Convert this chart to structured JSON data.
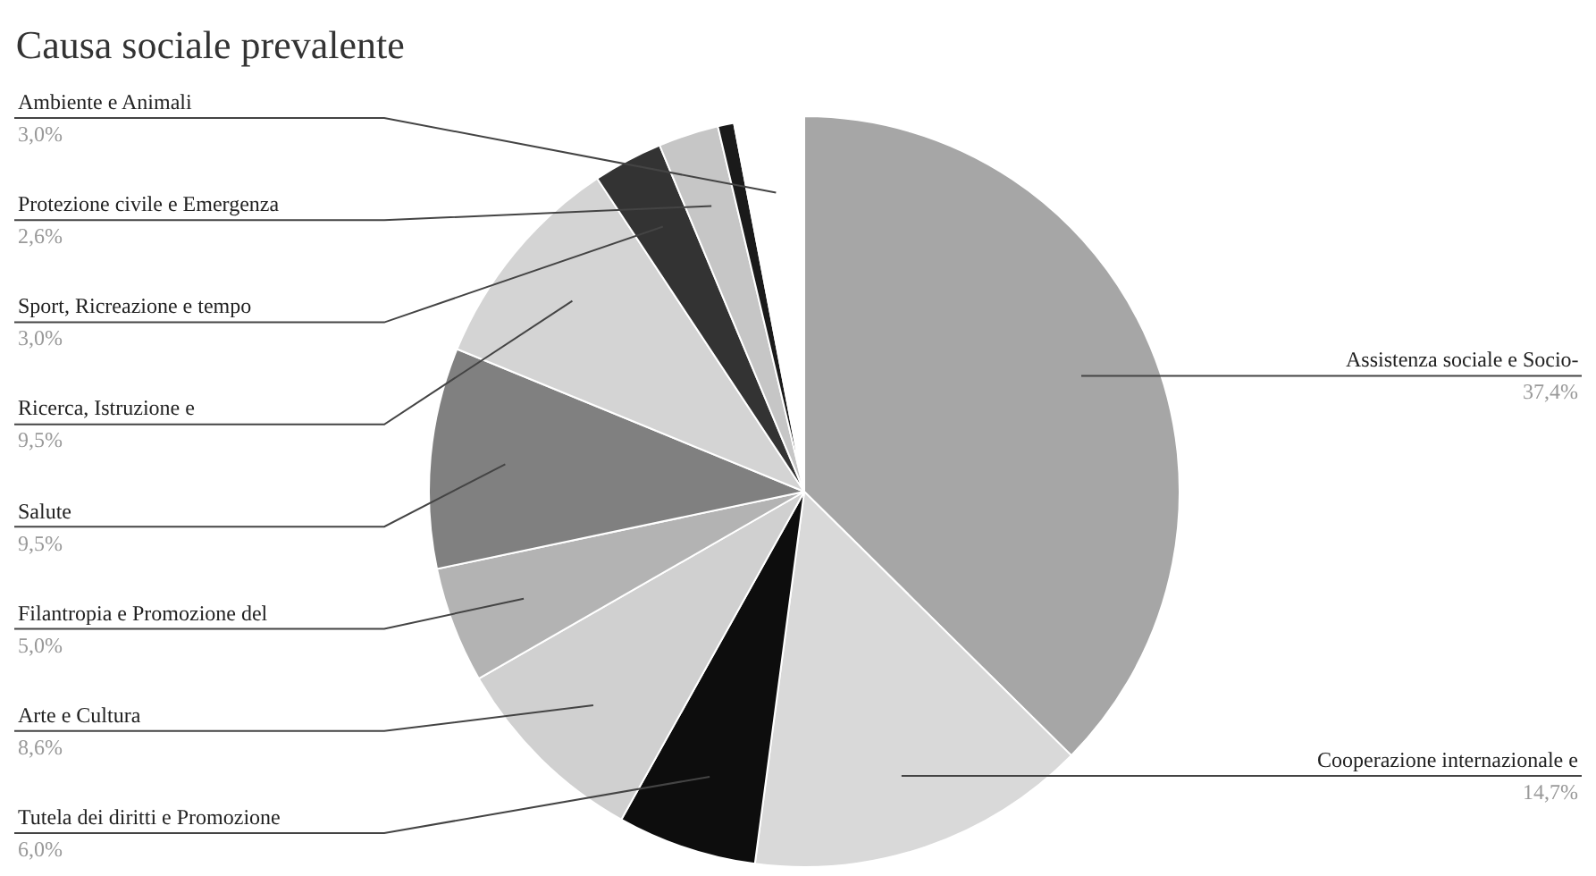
{
  "chart_data": {
    "type": "pie",
    "title": "Causa sociale prevalente",
    "categories": [
      "Assistenza sociale e Socio-",
      "Cooperazione internazionale e",
      "Tutela dei diritti e Promozione",
      "Arte e Cultura",
      "Filantropia e Promozione del",
      "Salute",
      "Ricerca, Istruzione e",
      "Sport, Ricreazione e tempo",
      "Protezione civile e Emergenza",
      null,
      "Ambiente e Animali"
    ],
    "values": [
      37.4,
      14.7,
      6.0,
      8.6,
      5.0,
      9.5,
      9.5,
      3.0,
      2.6,
      0.7,
      3.0
    ],
    "value_labels": [
      "37,4%",
      "14,7%",
      "6,0%",
      "8,6%",
      "5,0%",
      "9,5%",
      "9,5%",
      "3,0%",
      "2,6%",
      null,
      "3,0%"
    ],
    "colors": [
      "#a6a6a6",
      "#d9d9d9",
      "#0d0d0d",
      "#d0d0d0",
      "#b3b3b3",
      "#808080",
      "#d4d4d4",
      "#333333",
      "#c6c6c6",
      "#1a1a1a",
      "#ffffff"
    ]
  }
}
